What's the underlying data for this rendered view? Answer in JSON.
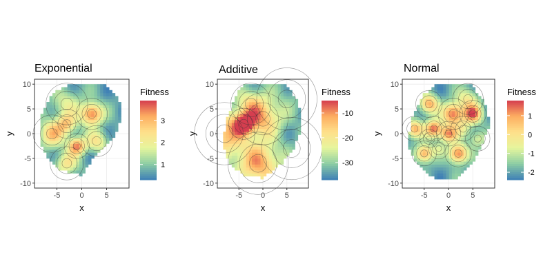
{
  "palette": [
    "#3E7FB6",
    "#8CCDA4",
    "#E6F59D",
    "#FEE08B",
    "#FDAE61",
    "#D53E4F"
  ],
  "chart_data": [
    {
      "type": "heatmap",
      "title": "Exponential",
      "xlabel": "x",
      "ylabel": "y",
      "xlim": [
        -9.5,
        9.5
      ],
      "ylim": [
        -11,
        11
      ],
      "xticks": [
        -5,
        0,
        5
      ],
      "yticks": [
        -10,
        -5,
        0,
        5,
        10
      ],
      "grid": true,
      "legend": {
        "title": "Fitness",
        "position": "right",
        "range": [
          0.3,
          3.9
        ],
        "ticks": [
          1,
          2,
          3
        ]
      },
      "outline": [
        [
          -3,
          9.8
        ],
        [
          4.5,
          9.8
        ],
        [
          7.5,
          7
        ],
        [
          8,
          3
        ],
        [
          6.5,
          -1
        ],
        [
          3,
          -4
        ],
        [
          0,
          -8.5
        ],
        [
          -4,
          -7.5
        ],
        [
          -7,
          -5
        ],
        [
          -8.5,
          -1
        ],
        [
          -8,
          4
        ],
        [
          -6,
          8
        ]
      ],
      "peaks": [
        [
          2,
          4,
          3.6,
          1.5
        ],
        [
          -1,
          -2.5,
          3.3,
          1.2
        ],
        [
          -6,
          0,
          2.6,
          1.8
        ],
        [
          -3,
          2,
          2.3,
          1.4
        ],
        [
          -3,
          -6,
          2.0,
          1.6
        ],
        [
          3,
          -1.5,
          2.0,
          1.5
        ],
        [
          -3,
          6,
          1.5,
          2.0
        ]
      ]
    },
    {
      "type": "heatmap",
      "title": "Additive",
      "xlabel": "x",
      "ylabel": "y",
      "xlim": [
        -9.5,
        9.5
      ],
      "ylim": [
        -11,
        11
      ],
      "xticks": [
        -5,
        0,
        5
      ],
      "yticks": [
        -10,
        -5,
        0,
        5,
        10
      ],
      "grid": true,
      "legend": {
        "title": "Fitness",
        "position": "right",
        "range": [
          -37,
          -5
        ],
        "ticks": [
          -10,
          -20,
          -30
        ]
      },
      "outline": [
        [
          -4,
          10
        ],
        [
          5,
          10
        ],
        [
          7.5,
          6
        ],
        [
          8,
          1
        ],
        [
          6.5,
          -3
        ],
        [
          4,
          -6
        ],
        [
          0,
          -9
        ],
        [
          -4,
          -8.5
        ],
        [
          -7,
          -6
        ],
        [
          -8.5,
          -2
        ],
        [
          -7.5,
          3
        ],
        [
          -6,
          7
        ]
      ],
      "peaks": [
        [
          -4,
          2,
          -7,
          1.5
        ],
        [
          -1,
          -6,
          -12,
          3.0
        ],
        [
          0,
          3,
          -16,
          2.5
        ],
        [
          -8,
          0,
          -14,
          3.0
        ],
        [
          -2.5,
          6,
          -22,
          2.0
        ],
        [
          6,
          -3,
          -36,
          3.0
        ],
        [
          5,
          7,
          -34,
          3.0
        ]
      ]
    },
    {
      "type": "heatmap",
      "title": "Normal",
      "xlabel": "x",
      "ylabel": "y",
      "xlim": [
        -9.5,
        9.5
      ],
      "ylim": [
        -11,
        11
      ],
      "xticks": [
        -5,
        0,
        5
      ],
      "yticks": [
        -10,
        -5,
        0,
        5,
        10
      ],
      "grid": true,
      "legend": {
        "title": "Fitness",
        "position": "right",
        "range": [
          -2.4,
          1.8
        ],
        "ticks": [
          1,
          0,
          -1,
          -2
        ]
      },
      "outline": [
        [
          -2.5,
          10
        ],
        [
          4.5,
          10
        ],
        [
          7.5,
          6.5
        ],
        [
          8.5,
          2
        ],
        [
          7,
          -2
        ],
        [
          5,
          -6
        ],
        [
          1,
          -9.5
        ],
        [
          -3,
          -9
        ],
        [
          -6.5,
          -6
        ],
        [
          -8.5,
          -2
        ],
        [
          -7.5,
          3
        ],
        [
          -5.5,
          7.5
        ]
      ],
      "peaks": [
        [
          1,
          4,
          1.5,
          1.5
        ],
        [
          5,
          4,
          1.3,
          1.3
        ],
        [
          -3,
          1,
          1.4,
          1.2
        ],
        [
          2,
          -4,
          1.5,
          1.3
        ],
        [
          -5,
          -4,
          1.0,
          1.2
        ],
        [
          0,
          0,
          1.0,
          1.2
        ],
        [
          -4,
          6,
          0.8,
          1.3
        ],
        [
          -4,
          -1,
          -2.3,
          0.9
        ],
        [
          -2,
          -3,
          -1.5,
          1.0
        ],
        [
          3,
          1,
          -1.2,
          1.2
        ],
        [
          6,
          -1,
          -1.0,
          1.2
        ],
        [
          4,
          7,
          -0.6,
          1.5
        ],
        [
          -7,
          1,
          0.6,
          1.2
        ]
      ]
    }
  ]
}
